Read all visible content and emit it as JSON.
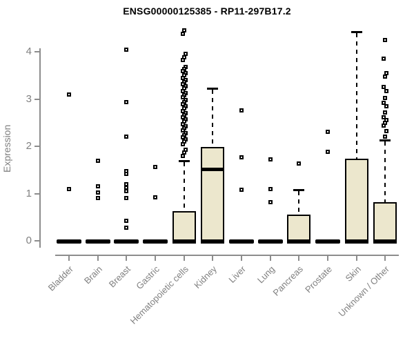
{
  "chart_data": {
    "type": "boxplot",
    "title": "ENSG00000125385 - RP11-297B17.2",
    "ylabel": "Expression",
    "xlabel": "",
    "ylim": [
      0,
      4
    ],
    "yticks": [
      0,
      1,
      2,
      3,
      4
    ],
    "grid": false,
    "legend": "none",
    "colors": {
      "box_fill": "#ECE7CD",
      "box_stroke": "#000000",
      "axis": "#8C8C8C",
      "tick_label": "#808080",
      "title": "#000000"
    },
    "categories": [
      "Bladder",
      "Brain",
      "Breast",
      "Gastric",
      "Hematopoietic cells",
      "Kidney",
      "Liver",
      "Lung",
      "Pancreas",
      "Prostate",
      "Skin",
      "Unknown / Other"
    ],
    "series": [
      {
        "label": "Bladder",
        "min": 0,
        "q1": 0,
        "median": 0,
        "q3": 0,
        "whisker_high": 0,
        "outliers": [
          3.1,
          1.1
        ]
      },
      {
        "label": "Brain",
        "min": 0,
        "q1": 0,
        "median": 0,
        "q3": 0,
        "whisker_high": 0,
        "outliers": [
          1.7,
          1.15,
          1.02,
          0.91
        ]
      },
      {
        "label": "Breast",
        "min": 0,
        "q1": 0,
        "median": 0,
        "q3": 0,
        "whisker_high": 0,
        "outliers": [
          4.05,
          2.93,
          2.2,
          1.48,
          1.42,
          1.2,
          1.12,
          1.05,
          0.9,
          0.42,
          0.28
        ]
      },
      {
        "label": "Gastric",
        "min": 0,
        "q1": 0,
        "median": 0,
        "q3": 0,
        "whisker_high": 0,
        "outliers": [
          1.56,
          0.92
        ]
      },
      {
        "label": "Hematopoietic cells",
        "min": 0,
        "q1": 0,
        "median": 0,
        "q3": 0.63,
        "whisker_high": 1.69,
        "outliers": [
          4.45,
          4.38,
          3.96,
          3.89,
          3.82,
          3.68,
          3.64,
          3.59,
          3.55,
          3.5,
          3.45,
          3.4,
          3.36,
          3.31,
          3.27,
          3.22,
          3.17,
          3.12,
          3.08,
          3.03,
          2.98,
          2.94,
          2.89,
          2.85,
          2.8,
          2.75,
          2.7,
          2.66,
          2.61,
          2.57,
          2.52,
          2.47,
          2.42,
          2.38,
          2.33,
          2.28,
          2.24,
          2.19,
          2.14,
          2.1,
          2.05,
          1.93,
          1.87,
          1.8
        ]
      },
      {
        "label": "Kidney",
        "min": 0,
        "q1": 0,
        "median": 1.52,
        "q3": 1.98,
        "whisker_high": 3.22,
        "outliers": []
      },
      {
        "label": "Liver",
        "min": 0,
        "q1": 0,
        "median": 0,
        "q3": 0,
        "whisker_high": 0,
        "outliers": [
          2.76,
          1.76,
          1.08
        ]
      },
      {
        "label": "Lung",
        "min": 0,
        "q1": 0,
        "median": 0,
        "q3": 0,
        "whisker_high": 0,
        "outliers": [
          1.72,
          1.1,
          0.82
        ]
      },
      {
        "label": "Pancreas",
        "min": 0,
        "q1": 0,
        "median": 0,
        "q3": 0.55,
        "whisker_high": 1.08,
        "outliers": [
          1.64
        ]
      },
      {
        "label": "Prostate",
        "min": 0,
        "q1": 0,
        "median": 0,
        "q3": 0,
        "whisker_high": 0,
        "outliers": [
          2.3,
          1.88
        ]
      },
      {
        "label": "Skin",
        "min": 0,
        "q1": 0,
        "median": 0,
        "q3": 1.73,
        "whisker_high": 4.42,
        "outliers": []
      },
      {
        "label": "Unknown / Other",
        "min": 0,
        "q1": 0,
        "median": 0,
        "q3": 0.82,
        "whisker_high": 2.13,
        "outliers": [
          4.25,
          3.85,
          3.55,
          3.48,
          3.25,
          3.17,
          3.02,
          2.92,
          2.85,
          2.71,
          2.62,
          2.56,
          2.5,
          2.44,
          2.32,
          2.2
        ]
      }
    ]
  }
}
